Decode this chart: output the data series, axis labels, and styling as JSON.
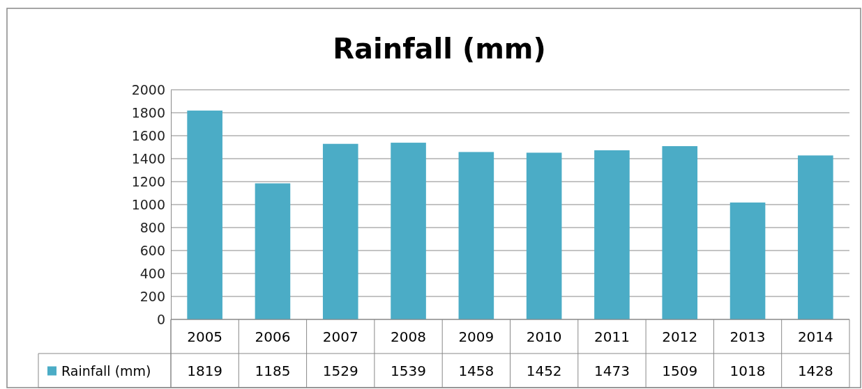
{
  "chart_data": {
    "type": "bar",
    "title": "Rainfall (mm)",
    "categories": [
      "2005",
      "2006",
      "2007",
      "2008",
      "2009",
      "2010",
      "2011",
      "2012",
      "2013",
      "2014"
    ],
    "series": [
      {
        "name": "Rainfall (mm)",
        "color": "#4bacc6",
        "values": [
          1819,
          1185,
          1529,
          1539,
          1458,
          1452,
          1473,
          1509,
          1018,
          1428
        ]
      }
    ],
    "ylim": [
      0,
      2000
    ],
    "yticks": [
      0,
      200,
      400,
      600,
      800,
      1000,
      1200,
      1400,
      1600,
      1800,
      2000
    ],
    "grid": "y",
    "legend": "left",
    "data_labels": true
  }
}
